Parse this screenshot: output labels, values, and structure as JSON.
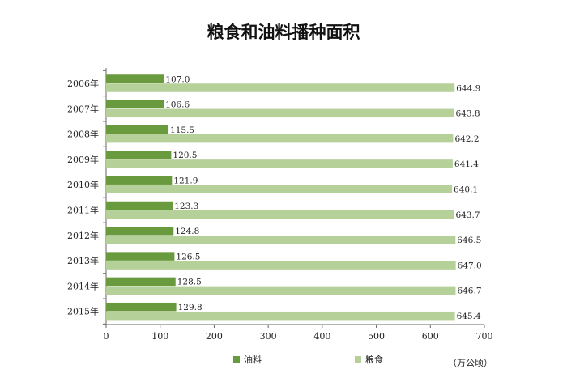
{
  "chart_data": {
    "type": "bar",
    "orientation": "horizontal",
    "title": "粮食和油料播种面积",
    "unit": "（万公顷）",
    "categories": [
      "2006年",
      "2007年",
      "2008年",
      "2009年",
      "2010年",
      "2011年",
      "2012年",
      "2013年",
      "2014年",
      "2015年"
    ],
    "series": [
      {
        "name": "油料",
        "color": "#6a9a3e",
        "values": [
          107.0,
          106.6,
          115.5,
          120.5,
          121.9,
          123.3,
          124.8,
          126.5,
          128.5,
          129.8
        ],
        "labels": [
          "107.0",
          "106.6",
          "115.5",
          "120.5",
          "121.9",
          "123.3",
          "124.8",
          "126.5",
          "128.5",
          "129.8"
        ]
      },
      {
        "name": "粮食",
        "color": "#b6d09a",
        "values": [
          644.9,
          643.8,
          642.2,
          641.4,
          640.1,
          643.7,
          646.5,
          647.0,
          646.7,
          645.4
        ],
        "labels": [
          "644.9",
          "643.8",
          "642.2",
          "641.4",
          "640.1",
          "643.7",
          "646.5",
          "647.0",
          "646.7",
          "645.4"
        ]
      }
    ],
    "xlim": [
      0,
      700
    ],
    "xticks": [
      "0",
      "100",
      "200",
      "300",
      "400",
      "500",
      "600",
      "700"
    ],
    "xtick_values": [
      0,
      100,
      200,
      300,
      400,
      500,
      600,
      700
    ],
    "legend_position": "bottom",
    "grid": false
  }
}
